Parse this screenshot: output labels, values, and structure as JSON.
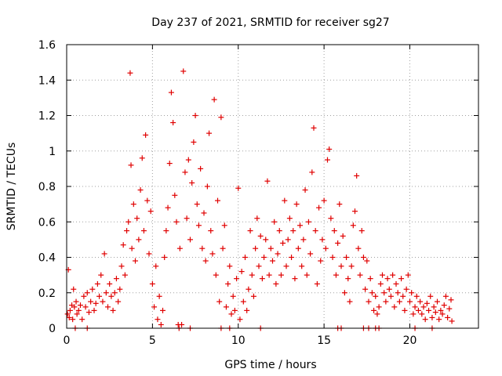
{
  "chart_data": {
    "type": "scatter",
    "title": "Day 237 of 2021, SRMTID for receiver sg27",
    "xlabel": "GPS time / hours",
    "ylabel": "SRMTID / TECUs",
    "xlim": [
      0,
      24
    ],
    "ylim": [
      0,
      1.6
    ],
    "x_ticks": [
      0,
      5,
      10,
      15,
      20
    ],
    "x_tick_labels": [
      "0",
      "5",
      "10",
      "15",
      "20"
    ],
    "y_ticks": [
      0,
      0.2,
      0.4,
      0.6,
      0.8,
      1.0,
      1.2,
      1.4,
      1.6
    ],
    "y_tick_labels": [
      "0",
      "0.2",
      "0.4",
      "0.6",
      "0.8",
      "1",
      "1.2",
      "1.4",
      "1.6"
    ],
    "grid": true,
    "marker": "+",
    "color": "#e00000",
    "series": [
      {
        "name": "SRMTID",
        "points": [
          [
            0.05,
            0.08
          ],
          [
            0.1,
            0.33
          ],
          [
            0.15,
            0.06
          ],
          [
            0.2,
            0.1
          ],
          [
            0.3,
            0.13
          ],
          [
            0.35,
            0.05
          ],
          [
            0.4,
            0.22
          ],
          [
            0.45,
            0.12
          ],
          [
            0.55,
            0.15
          ],
          [
            0.6,
            0.08
          ],
          [
            0.7,
            0.1
          ],
          [
            0.8,
            0.13
          ],
          [
            0.9,
            0.05
          ],
          [
            1.0,
            0.18
          ],
          [
            1.1,
            0.12
          ],
          [
            1.2,
            0.2
          ],
          [
            1.3,
            0.09
          ],
          [
            1.4,
            0.15
          ],
          [
            1.5,
            0.22
          ],
          [
            1.6,
            0.1
          ],
          [
            1.7,
            0.14
          ],
          [
            1.8,
            0.25
          ],
          [
            1.9,
            0.18
          ],
          [
            2.0,
            0.3
          ],
          [
            2.1,
            0.15
          ],
          [
            2.2,
            0.42
          ],
          [
            2.3,
            0.2
          ],
          [
            2.4,
            0.12
          ],
          [
            2.5,
            0.25
          ],
          [
            2.6,
            0.18
          ],
          [
            2.7,
            0.1
          ],
          [
            2.8,
            0.2
          ],
          [
            2.9,
            0.28
          ],
          [
            3.0,
            0.15
          ],
          [
            3.1,
            0.22
          ],
          [
            3.2,
            0.35
          ],
          [
            3.3,
            0.47
          ],
          [
            3.4,
            0.3
          ],
          [
            3.5,
            0.55
          ],
          [
            3.6,
            0.6
          ],
          [
            3.7,
            1.44
          ],
          [
            3.75,
            0.92
          ],
          [
            3.8,
            0.45
          ],
          [
            3.9,
            0.7
          ],
          [
            4.0,
            0.38
          ],
          [
            4.1,
            0.62
          ],
          [
            4.2,
            0.5
          ],
          [
            4.3,
            0.78
          ],
          [
            4.4,
            0.96
          ],
          [
            4.5,
            0.55
          ],
          [
            4.6,
            1.09
          ],
          [
            4.7,
            0.72
          ],
          [
            4.8,
            0.42
          ],
          [
            4.9,
            0.66
          ],
          [
            5.0,
            0.25
          ],
          [
            5.1,
            0.12
          ],
          [
            5.2,
            0.35
          ],
          [
            5.3,
            0.05
          ],
          [
            5.4,
            0.18
          ],
          [
            5.5,
            0.02
          ],
          [
            5.6,
            0.1
          ],
          [
            5.7,
            0.4
          ],
          [
            5.8,
            0.55
          ],
          [
            5.9,
            0.68
          ],
          [
            6.0,
            0.93
          ],
          [
            6.1,
            1.33
          ],
          [
            6.2,
            1.16
          ],
          [
            6.3,
            0.75
          ],
          [
            6.4,
            0.6
          ],
          [
            6.5,
            0.02
          ],
          [
            6.6,
            0.45
          ],
          [
            6.7,
            0.02
          ],
          [
            6.8,
            1.45
          ],
          [
            6.9,
            0.88
          ],
          [
            7.0,
            0.62
          ],
          [
            7.1,
            0.95
          ],
          [
            7.2,
            0.5
          ],
          [
            7.3,
            0.82
          ],
          [
            7.4,
            1.05
          ],
          [
            7.5,
            1.2
          ],
          [
            7.6,
            0.7
          ],
          [
            7.7,
            0.58
          ],
          [
            7.8,
            0.9
          ],
          [
            7.9,
            0.45
          ],
          [
            8.0,
            0.65
          ],
          [
            8.1,
            0.38
          ],
          [
            8.2,
            0.8
          ],
          [
            8.3,
            1.1
          ],
          [
            8.4,
            0.55
          ],
          [
            8.5,
            0.42
          ],
          [
            8.6,
            1.29
          ],
          [
            8.7,
            0.3
          ],
          [
            8.8,
            0.72
          ],
          [
            8.9,
            0.15
          ],
          [
            9.0,
            1.19
          ],
          [
            9.1,
            0.45
          ],
          [
            9.2,
            0.58
          ],
          [
            9.3,
            0.12
          ],
          [
            9.4,
            0.25
          ],
          [
            9.5,
            0.35
          ],
          [
            9.6,
            0.08
          ],
          [
            9.7,
            0.18
          ],
          [
            9.8,
            0.1
          ],
          [
            9.9,
            0.28
          ],
          [
            10.0,
            0.79
          ],
          [
            10.1,
            0.05
          ],
          [
            10.2,
            0.32
          ],
          [
            10.3,
            0.15
          ],
          [
            10.4,
            0.4
          ],
          [
            10.5,
            0.1
          ],
          [
            10.6,
            0.22
          ],
          [
            10.7,
            0.55
          ],
          [
            10.8,
            0.3
          ],
          [
            10.9,
            0.18
          ],
          [
            11.0,
            0.45
          ],
          [
            11.1,
            0.62
          ],
          [
            11.2,
            0.35
          ],
          [
            11.3,
            0.52
          ],
          [
            11.4,
            0.28
          ],
          [
            11.5,
            0.4
          ],
          [
            11.6,
            0.5
          ],
          [
            11.7,
            0.83
          ],
          [
            11.8,
            0.3
          ],
          [
            11.9,
            0.45
          ],
          [
            12.0,
            0.38
          ],
          [
            12.1,
            0.6
          ],
          [
            12.2,
            0.25
          ],
          [
            12.3,
            0.42
          ],
          [
            12.4,
            0.55
          ],
          [
            12.5,
            0.3
          ],
          [
            12.6,
            0.48
          ],
          [
            12.7,
            0.72
          ],
          [
            12.8,
            0.35
          ],
          [
            12.9,
            0.5
          ],
          [
            13.0,
            0.62
          ],
          [
            13.1,
            0.4
          ],
          [
            13.2,
            0.55
          ],
          [
            13.3,
            0.28
          ],
          [
            13.4,
            0.7
          ],
          [
            13.5,
            0.45
          ],
          [
            13.6,
            0.58
          ],
          [
            13.7,
            0.35
          ],
          [
            13.8,
            0.5
          ],
          [
            13.9,
            0.78
          ],
          [
            14.0,
            0.3
          ],
          [
            14.1,
            0.6
          ],
          [
            14.2,
            0.42
          ],
          [
            14.3,
            0.88
          ],
          [
            14.4,
            1.13
          ],
          [
            14.5,
            0.55
          ],
          [
            14.6,
            0.25
          ],
          [
            14.7,
            0.68
          ],
          [
            14.8,
            0.38
          ],
          [
            14.9,
            0.5
          ],
          [
            15.0,
            0.72
          ],
          [
            15.1,
            0.45
          ],
          [
            15.2,
            0.95
          ],
          [
            15.3,
            1.01
          ],
          [
            15.4,
            0.62
          ],
          [
            15.5,
            0.4
          ],
          [
            15.6,
            0.55
          ],
          [
            15.7,
            0.3
          ],
          [
            15.8,
            0.48
          ],
          [
            15.9,
            0.7
          ],
          [
            16.0,
            0.35
          ],
          [
            16.1,
            0.52
          ],
          [
            16.2,
            0.2
          ],
          [
            16.3,
            0.4
          ],
          [
            16.4,
            0.28
          ],
          [
            16.5,
            0.15
          ],
          [
            16.6,
            0.35
          ],
          [
            16.7,
            0.58
          ],
          [
            16.8,
            0.66
          ],
          [
            16.9,
            0.86
          ],
          [
            17.0,
            0.45
          ],
          [
            17.1,
            0.3
          ],
          [
            17.2,
            0.55
          ],
          [
            17.3,
            0.4
          ],
          [
            17.4,
            0.22
          ],
          [
            17.5,
            0.38
          ],
          [
            17.6,
            0.15
          ],
          [
            17.7,
            0.28
          ],
          [
            17.8,
            0.2
          ],
          [
            17.9,
            0.1
          ],
          [
            18.0,
            0.18
          ],
          [
            18.1,
            0.08
          ],
          [
            18.2,
            0.12
          ],
          [
            18.3,
            0.25
          ],
          [
            18.4,
            0.3
          ],
          [
            18.5,
            0.2
          ],
          [
            18.6,
            0.15
          ],
          [
            18.7,
            0.28
          ],
          [
            18.8,
            0.22
          ],
          [
            18.9,
            0.18
          ],
          [
            19.0,
            0.3
          ],
          [
            19.1,
            0.12
          ],
          [
            19.2,
            0.25
          ],
          [
            19.3,
            0.2
          ],
          [
            19.4,
            0.15
          ],
          [
            19.5,
            0.28
          ],
          [
            19.6,
            0.18
          ],
          [
            19.7,
            0.1
          ],
          [
            19.8,
            0.22
          ],
          [
            19.9,
            0.3
          ],
          [
            20.0,
            0.15
          ],
          [
            20.1,
            0.2
          ],
          [
            20.2,
            0.08
          ],
          [
            20.3,
            0.12
          ],
          [
            20.4,
            0.18
          ],
          [
            20.5,
            0.1
          ],
          [
            20.6,
            0.15
          ],
          [
            20.7,
            0.08
          ],
          [
            20.8,
            0.12
          ],
          [
            20.9,
            0.05
          ],
          [
            21.0,
            0.14
          ],
          [
            21.1,
            0.1
          ],
          [
            21.2,
            0.18
          ],
          [
            21.3,
            0.06
          ],
          [
            21.4,
            0.12
          ],
          [
            21.5,
            0.09
          ],
          [
            21.6,
            0.15
          ],
          [
            21.7,
            0.05
          ],
          [
            21.8,
            0.1
          ],
          [
            21.9,
            0.08
          ],
          [
            22.0,
            0.13
          ],
          [
            22.1,
            0.18
          ],
          [
            22.2,
            0.06
          ],
          [
            22.3,
            0.11
          ],
          [
            22.4,
            0.16
          ],
          [
            22.45,
            0.04
          ],
          [
            0.5,
            0.0
          ],
          [
            1.2,
            0.0
          ],
          [
            6.55,
            0.0
          ],
          [
            7.2,
            0.0
          ],
          [
            9.0,
            0.0
          ],
          [
            9.5,
            0.0
          ],
          [
            11.3,
            0.0
          ],
          [
            15.8,
            0.0
          ],
          [
            16.0,
            0.0
          ],
          [
            17.3,
            0.0
          ],
          [
            17.6,
            0.0
          ],
          [
            18.0,
            0.0
          ],
          [
            18.2,
            0.0
          ],
          [
            20.3,
            0.0
          ],
          [
            21.3,
            0.0
          ]
        ]
      }
    ]
  }
}
